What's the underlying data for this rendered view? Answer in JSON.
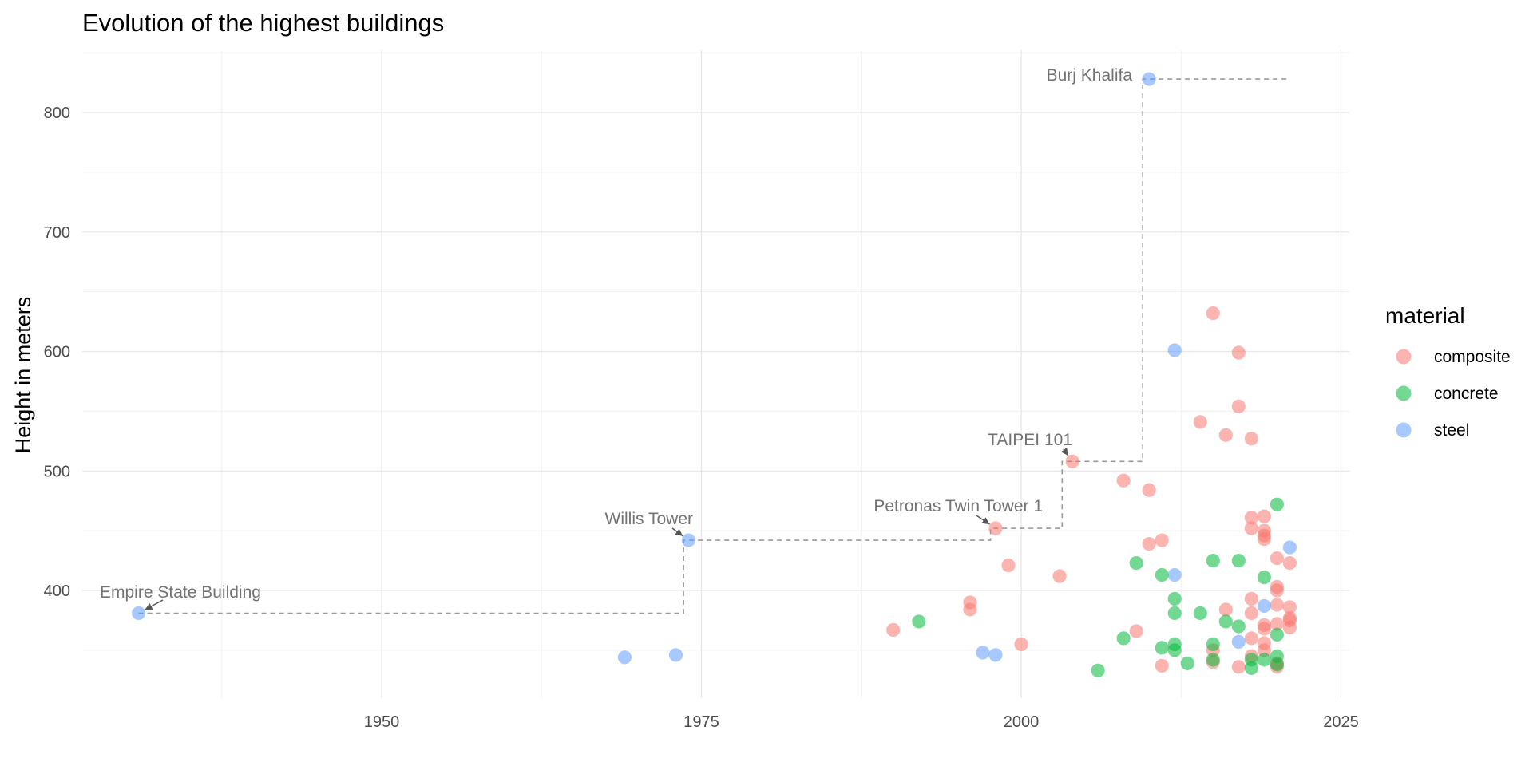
{
  "chart_data": {
    "type": "scatter",
    "title": "Evolution of the highest buildings",
    "xlabel": "",
    "ylabel": "Height in meters",
    "xlim": [
      1927,
      2026
    ],
    "ylim": [
      312,
      850
    ],
    "x_ticks": [
      1950,
      1975,
      2000,
      2025
    ],
    "y_ticks": [
      400,
      500,
      600,
      700,
      800
    ],
    "grid": true,
    "legend": {
      "title": "material",
      "placement": "right",
      "entries": [
        {
          "name": "composite",
          "color": "#F8766D"
        },
        {
          "name": "concrete",
          "color": "#00BA38"
        },
        {
          "name": "steel",
          "color": "#619CFF"
        }
      ]
    },
    "series": [
      {
        "name": "composite",
        "color": "#F8766D",
        "points": [
          [
            1990,
            367
          ],
          [
            1996,
            384
          ],
          [
            1996,
            390
          ],
          [
            1998,
            452
          ],
          [
            1999,
            421
          ],
          [
            2000,
            355
          ],
          [
            2003,
            412
          ],
          [
            2004,
            508
          ],
          [
            2008,
            492
          ],
          [
            2009,
            366
          ],
          [
            2010,
            484
          ],
          [
            2010,
            439
          ],
          [
            2011,
            442
          ],
          [
            2011,
            337
          ],
          [
            2014,
            541
          ],
          [
            2015,
            632
          ],
          [
            2015,
            350
          ],
          [
            2015,
            340
          ],
          [
            2016,
            530
          ],
          [
            2016,
            384
          ],
          [
            2017,
            599
          ],
          [
            2017,
            554
          ],
          [
            2017,
            336
          ],
          [
            2018,
            527
          ],
          [
            2018,
            461
          ],
          [
            2018,
            452
          ],
          [
            2018,
            393
          ],
          [
            2018,
            381
          ],
          [
            2018,
            360
          ],
          [
            2018,
            345
          ],
          [
            2019,
            462
          ],
          [
            2019,
            450
          ],
          [
            2019,
            446
          ],
          [
            2019,
            443
          ],
          [
            2019,
            371
          ],
          [
            2019,
            368
          ],
          [
            2019,
            356
          ],
          [
            2019,
            350
          ],
          [
            2020,
            427
          ],
          [
            2020,
            403
          ],
          [
            2020,
            400
          ],
          [
            2020,
            388
          ],
          [
            2020,
            372
          ],
          [
            2020,
            339
          ],
          [
            2020,
            336
          ],
          [
            2021,
            423
          ],
          [
            2021,
            386
          ],
          [
            2021,
            377
          ],
          [
            2021,
            375
          ],
          [
            2021,
            369
          ]
        ]
      },
      {
        "name": "concrete",
        "color": "#00BA38",
        "points": [
          [
            1992,
            374
          ],
          [
            2006,
            333
          ],
          [
            2008,
            360
          ],
          [
            2009,
            423
          ],
          [
            2011,
            413
          ],
          [
            2011,
            352
          ],
          [
            2012,
            393
          ],
          [
            2012,
            381
          ],
          [
            2012,
            355
          ],
          [
            2012,
            350
          ],
          [
            2013,
            339
          ],
          [
            2014,
            381
          ],
          [
            2015,
            425
          ],
          [
            2015,
            355
          ],
          [
            2015,
            342
          ],
          [
            2016,
            374
          ],
          [
            2017,
            425
          ],
          [
            2017,
            370
          ],
          [
            2018,
            342
          ],
          [
            2018,
            335
          ],
          [
            2019,
            411
          ],
          [
            2019,
            342
          ],
          [
            2020,
            472
          ],
          [
            2020,
            363
          ],
          [
            2020,
            345
          ],
          [
            2020,
            338
          ]
        ]
      },
      {
        "name": "steel",
        "color": "#619CFF",
        "points": [
          [
            1931,
            381
          ],
          [
            1969,
            344
          ],
          [
            1973,
            346
          ],
          [
            1974,
            442
          ],
          [
            1997,
            348
          ],
          [
            1998,
            346
          ],
          [
            2010,
            828
          ],
          [
            2012,
            601
          ],
          [
            2012,
            413
          ],
          [
            2017,
            357
          ],
          [
            2019,
            387
          ],
          [
            2021,
            436
          ]
        ]
      }
    ],
    "record_step_line": [
      [
        1931,
        381
      ],
      [
        1973.6,
        381
      ],
      [
        1973.6,
        442
      ],
      [
        1997.6,
        442
      ],
      [
        1997.6,
        452
      ],
      [
        2003.2,
        452
      ],
      [
        2003.2,
        508
      ],
      [
        2009.5,
        508
      ],
      [
        2009.5,
        828
      ],
      [
        2021,
        828
      ]
    ],
    "annotations": [
      {
        "label": "Empire State Building",
        "x": 1931,
        "y": 381,
        "arrow": true
      },
      {
        "label": "Willis Tower",
        "x": 1974,
        "y": 442,
        "arrow": true
      },
      {
        "label": "Petronas Twin Tower 1",
        "x": 1998,
        "y": 452,
        "arrow": true
      },
      {
        "label": "TAIPEI 101",
        "x": 2004,
        "y": 508,
        "arrow": true
      },
      {
        "label": "Burj Khalifa",
        "x": 2010,
        "y": 828,
        "arrow": false
      }
    ]
  }
}
